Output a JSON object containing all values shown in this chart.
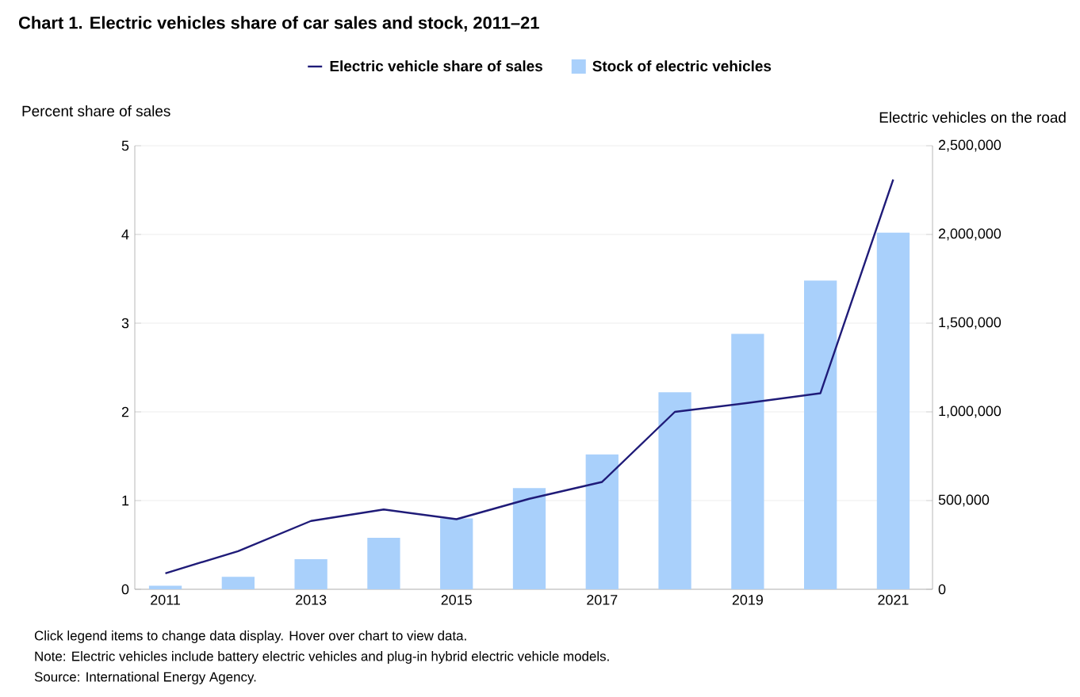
{
  "chart_data": {
    "type": "bar",
    "title": "Chart 1. Electric vehicles share of car sales and stock, 2011–21",
    "categories": [
      "2011",
      null,
      "2013",
      null,
      "2015",
      null,
      "2017",
      null,
      "2019",
      null,
      "2021"
    ],
    "series": [
      {
        "name": "Electric vehicle share of sales",
        "type": "line",
        "color": "#1f1b78",
        "values": [
          0.18,
          0.43,
          0.77,
          0.9,
          0.79,
          1.02,
          1.21,
          2.0,
          2.1,
          2.21,
          4.62
        ]
      },
      {
        "name": "Stock of electric vehicles",
        "axis": "y2",
        "color": "#a9d0fb",
        "values": [
          20000,
          70000,
          170000,
          290000,
          400000,
          570000,
          760000,
          1110000,
          1440000,
          1740000,
          2010000
        ]
      }
    ],
    "ylabel": "Percent share of sales",
    "y2label": "Electric vehicles on the road",
    "ylim": [
      0,
      5
    ],
    "yticks": [
      0,
      1,
      2,
      3,
      4,
      5
    ],
    "y2lim": [
      0,
      2500000
    ],
    "y2ticks": [
      0,
      {
        "value": 500000,
        "label": "500,000"
      },
      {
        "value": 1000000,
        "label": "1,000,000"
      },
      {
        "value": 1500000,
        "label": "1,500,000"
      },
      {
        "value": 2000000,
        "label": "2,000,000"
      },
      {
        "value": 2500000,
        "label": "2,500,000"
      }
    ],
    "grid": "y",
    "legend": "top",
    "marker": "none",
    "annotations": [
      "Click legend items to change data display. Hover over chart to view data.",
      "Note: Electric vehicles include battery electric vehicles and plug-in hybrid electric vehicle models.",
      "Source: International Energy Agency."
    ]
  }
}
